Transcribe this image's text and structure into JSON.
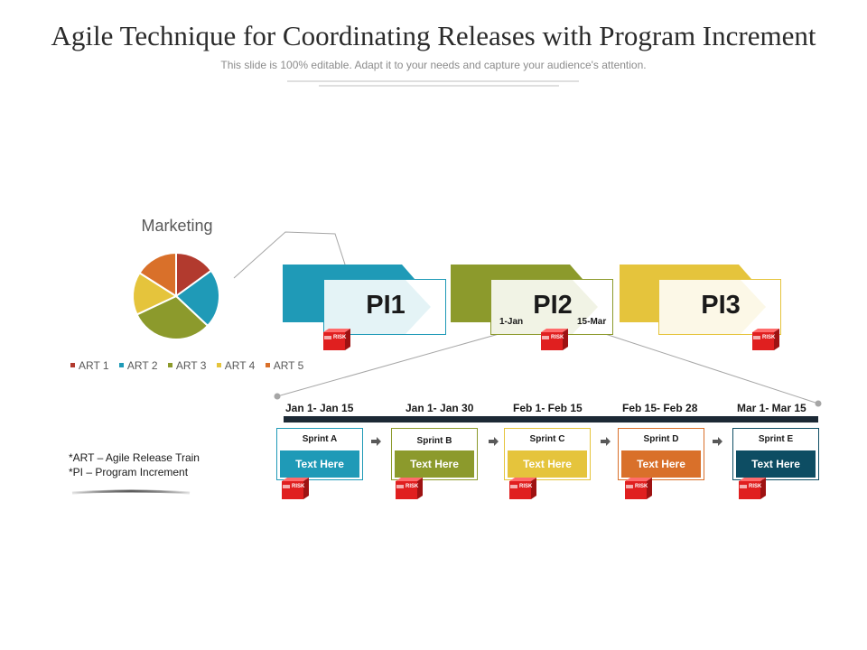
{
  "title": "Agile Technique for Coordinating Releases with Program Increment",
  "subtitle": "This slide is 100% editable. Adapt it to your needs and capture your audience's attention.",
  "pie": {
    "title": "Marketing",
    "slices": [
      {
        "label": "ART 1",
        "value": 15,
        "color": "#b23a2e"
      },
      {
        "label": "ART 2",
        "value": 22,
        "color": "#1f9ab7"
      },
      {
        "label": "ART 3",
        "value": 31,
        "color": "#8c9a2c"
      },
      {
        "label": "ART 4",
        "value": 16,
        "color": "#e5c43c"
      },
      {
        "label": "ART 5",
        "value": 16,
        "color": "#d9702a"
      }
    ]
  },
  "program_increments": [
    {
      "label": "PI1",
      "color": "#1f9ab7"
    },
    {
      "label": "PI2",
      "color": "#8c9a2c",
      "start_date": "1-Jan",
      "end_date": "15-Mar"
    },
    {
      "label": "PI3",
      "color": "#e5c43c"
    }
  ],
  "timeline": {
    "dates": [
      "Jan 1- Jan 15",
      "Jan 1- Jan 30",
      "Feb 1- Feb 15",
      "Feb 15- Feb 28",
      "Mar 1- Mar 15"
    ],
    "sprints": [
      {
        "name": "Sprint A",
        "text": "Text Here",
        "color": "#1f9ab7"
      },
      {
        "name": "Sprint B",
        "text": "Text Here",
        "color": "#8c9a2c"
      },
      {
        "name": "Sprint C",
        "text": "Text Here",
        "color": "#e5c43c"
      },
      {
        "name": "Sprint D",
        "text": "Text Here",
        "color": "#d9702a"
      },
      {
        "name": "Sprint E",
        "text": "Text Here",
        "color": "#0d4d63"
      }
    ]
  },
  "risk_label": "RISK",
  "notes": [
    "*ART – Agile Release Train",
    "*PI – Program Increment"
  ]
}
